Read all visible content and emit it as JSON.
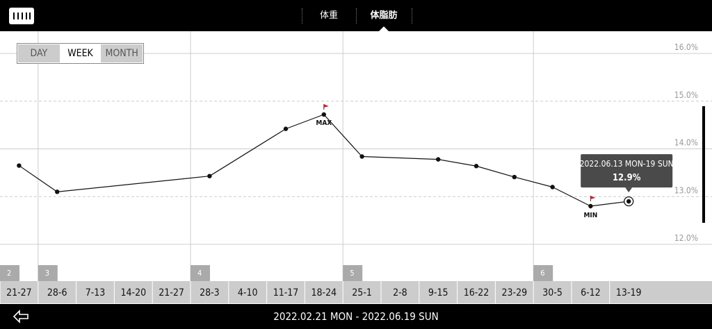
{
  "header": {
    "tabs": [
      "体重",
      "体脂肪"
    ],
    "selected_tab": 1
  },
  "range_buttons": [
    "DAY",
    "WEEK",
    "MONTH"
  ],
  "selected_range": 1,
  "chart_data": {
    "type": "line",
    "categories": [
      "21-27",
      "28-6",
      "7-13",
      "14-20",
      "21-27",
      "28-3",
      "4-10",
      "11-17",
      "18-24",
      "25-1",
      "2-8",
      "9-15",
      "16-22",
      "23-29",
      "30-5",
      "6-12",
      "13-19"
    ],
    "month_labels": [
      "2",
      "3",
      null,
      null,
      null,
      "4",
      null,
      null,
      null,
      "5",
      null,
      null,
      null,
      null,
      "6",
      null,
      null
    ],
    "series": [
      {
        "name": "体脂肪",
        "color": "#111111",
        "values": [
          13.65,
          13.1,
          null,
          null,
          null,
          13.43,
          null,
          14.42,
          14.72,
          13.84,
          null,
          13.78,
          13.64,
          13.41,
          13.2,
          12.8,
          12.9
        ]
      }
    ],
    "ylim": [
      12,
      16
    ],
    "yticks": [
      {
        "value": 12,
        "label": "12.0%"
      },
      {
        "value": 13,
        "label": "13.0%"
      },
      {
        "value": 14,
        "label": "14.0%"
      },
      {
        "value": 15,
        "label": "15.0%"
      },
      {
        "value": 16,
        "label": "16.0%"
      }
    ],
    "max_label": "MAX",
    "min_label": "MIN",
    "flag_color": "#d0202a",
    "tooltip": {
      "title": "2022.06.13 MON-19 SUN",
      "label": "12.9%"
    }
  },
  "footer": {
    "date_range": "2022.02.21 MON - 2022.06.19 SUN"
  }
}
